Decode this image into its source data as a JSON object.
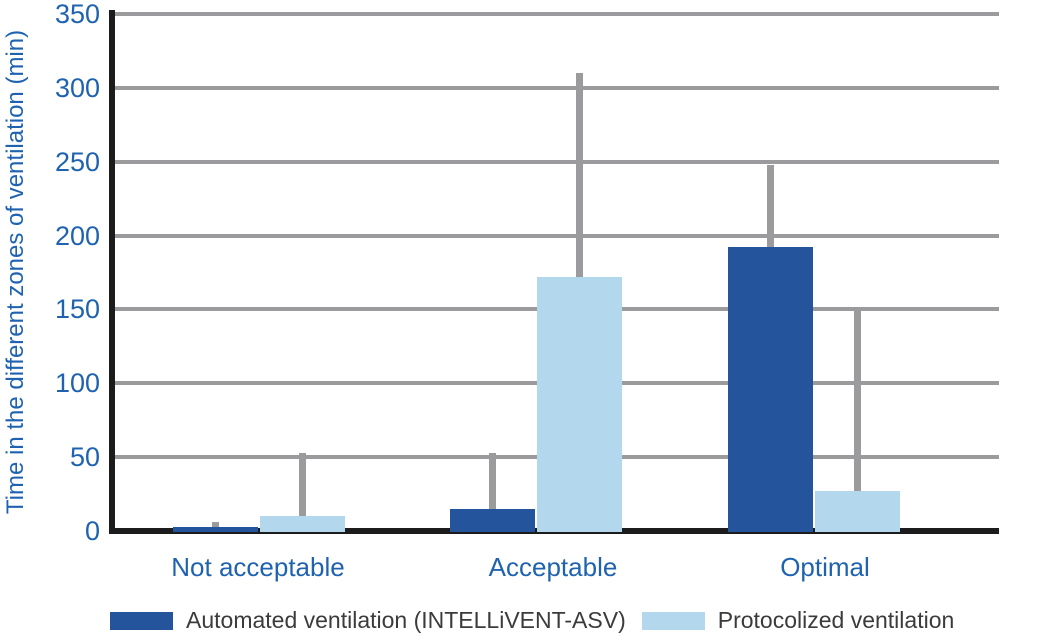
{
  "chart_data": {
    "type": "bar",
    "title": "",
    "ylabel": "Time in the different zones of ventilation (min)",
    "xlabel": "",
    "ylim": [
      0,
      350
    ],
    "yticks": [
      0,
      50,
      100,
      150,
      200,
      250,
      300,
      350
    ],
    "grid": "horizontal",
    "legend_position": "bottom",
    "categories": [
      "Not acceptable",
      "Acceptable",
      "Optimal"
    ],
    "series": [
      {
        "name": "Automated ventilation (INTELLiVENT-ASV)",
        "color": "#24549B",
        "values": [
          3,
          15,
          192
        ],
        "error_top": [
          6,
          53,
          248
        ]
      },
      {
        "name": "Protocolized ventilation",
        "color": "#B3D8ED",
        "values": [
          10,
          172,
          27
        ],
        "error_top": [
          53,
          310,
          150
        ]
      }
    ]
  },
  "colors": {
    "axis_text": "#1F63B0",
    "category_text": "#1F63B0",
    "grid": "#9B9B9D",
    "error_bar": "#9B9B9D",
    "axis_line": "#1C1C1C",
    "legend_text": "#3B3B3B",
    "background": "#FFFFFF"
  }
}
